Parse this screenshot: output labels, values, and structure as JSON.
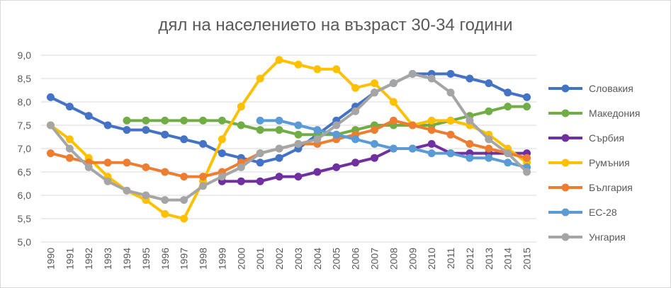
{
  "chart_data": {
    "type": "line",
    "title": "дял на населението на възраст 30-34 години",
    "xlabel": "",
    "ylabel": "",
    "ylim": [
      5.0,
      9.0
    ],
    "yticks": [
      "5,0",
      "5,5",
      "6,0",
      "6,5",
      "7,0",
      "7,5",
      "8,0",
      "8,5",
      "9,0"
    ],
    "grid": true,
    "legend_position": "right",
    "categories": [
      "1990",
      "1991",
      "1992",
      "1993",
      "1994",
      "1995",
      "1996",
      "1997",
      "1998",
      "1999",
      "2000",
      "2001",
      "2002",
      "2003",
      "2004",
      "2005",
      "2006",
      "2007",
      "2008",
      "2009",
      "2010",
      "2011",
      "2012",
      "2013",
      "2014",
      "2015"
    ],
    "series": [
      {
        "name": "Словакия",
        "color": "#4472c4",
        "values": [
          8.1,
          7.9,
          7.7,
          7.5,
          7.4,
          7.4,
          7.3,
          7.2,
          7.1,
          6.9,
          6.8,
          6.7,
          6.8,
          7.0,
          7.3,
          7.6,
          7.9,
          8.2,
          8.4,
          8.6,
          8.6,
          8.6,
          8.5,
          8.4,
          8.2,
          8.1
        ]
      },
      {
        "name": "Македония",
        "color": "#70ad47",
        "values": [
          null,
          null,
          null,
          null,
          7.6,
          7.6,
          7.6,
          7.6,
          7.6,
          7.6,
          7.5,
          7.4,
          7.4,
          7.3,
          7.3,
          7.3,
          7.4,
          7.5,
          7.5,
          7.5,
          7.5,
          7.6,
          7.7,
          7.8,
          7.9,
          7.9
        ]
      },
      {
        "name": "Сърбия",
        "color": "#7030a0",
        "values": [
          null,
          null,
          null,
          null,
          null,
          null,
          null,
          null,
          null,
          6.3,
          6.3,
          6.3,
          6.4,
          6.4,
          6.5,
          6.6,
          6.7,
          6.8,
          7.0,
          7.0,
          7.1,
          6.9,
          6.9,
          6.9,
          6.9,
          6.9
        ]
      },
      {
        "name": "Румъния",
        "color": "#ffc000",
        "values": [
          7.5,
          7.2,
          6.8,
          6.4,
          6.1,
          5.9,
          5.6,
          5.5,
          6.3,
          7.2,
          7.9,
          8.5,
          8.9,
          8.8,
          8.7,
          8.7,
          8.3,
          8.4,
          8.0,
          7.5,
          7.6,
          7.6,
          7.5,
          7.3,
          7.0,
          6.7
        ]
      },
      {
        "name": "България",
        "color": "#ed7d31",
        "values": [
          6.9,
          6.8,
          6.7,
          6.7,
          6.7,
          6.6,
          6.5,
          6.4,
          6.4,
          6.5,
          6.7,
          6.9,
          7.0,
          7.1,
          7.1,
          7.2,
          7.3,
          7.4,
          7.6,
          7.5,
          7.4,
          7.3,
          7.1,
          7.0,
          6.9,
          6.8
        ]
      },
      {
        "name": "ЕС-28",
        "color": "#5b9bd5",
        "values": [
          null,
          null,
          null,
          null,
          null,
          null,
          null,
          null,
          null,
          null,
          null,
          7.6,
          7.6,
          7.5,
          7.4,
          7.3,
          7.2,
          7.1,
          7.0,
          7.0,
          6.9,
          6.9,
          6.8,
          6.8,
          6.7,
          6.6
        ]
      },
      {
        "name": "Унгария",
        "color": "#a5a5a5",
        "values": [
          7.5,
          7.0,
          6.6,
          6.3,
          6.1,
          6.0,
          5.9,
          5.9,
          6.2,
          6.4,
          6.6,
          6.9,
          7.0,
          7.1,
          7.2,
          7.5,
          7.8,
          8.2,
          8.4,
          8.6,
          8.5,
          8.2,
          7.6,
          7.2,
          6.9,
          6.5
        ]
      }
    ]
  }
}
